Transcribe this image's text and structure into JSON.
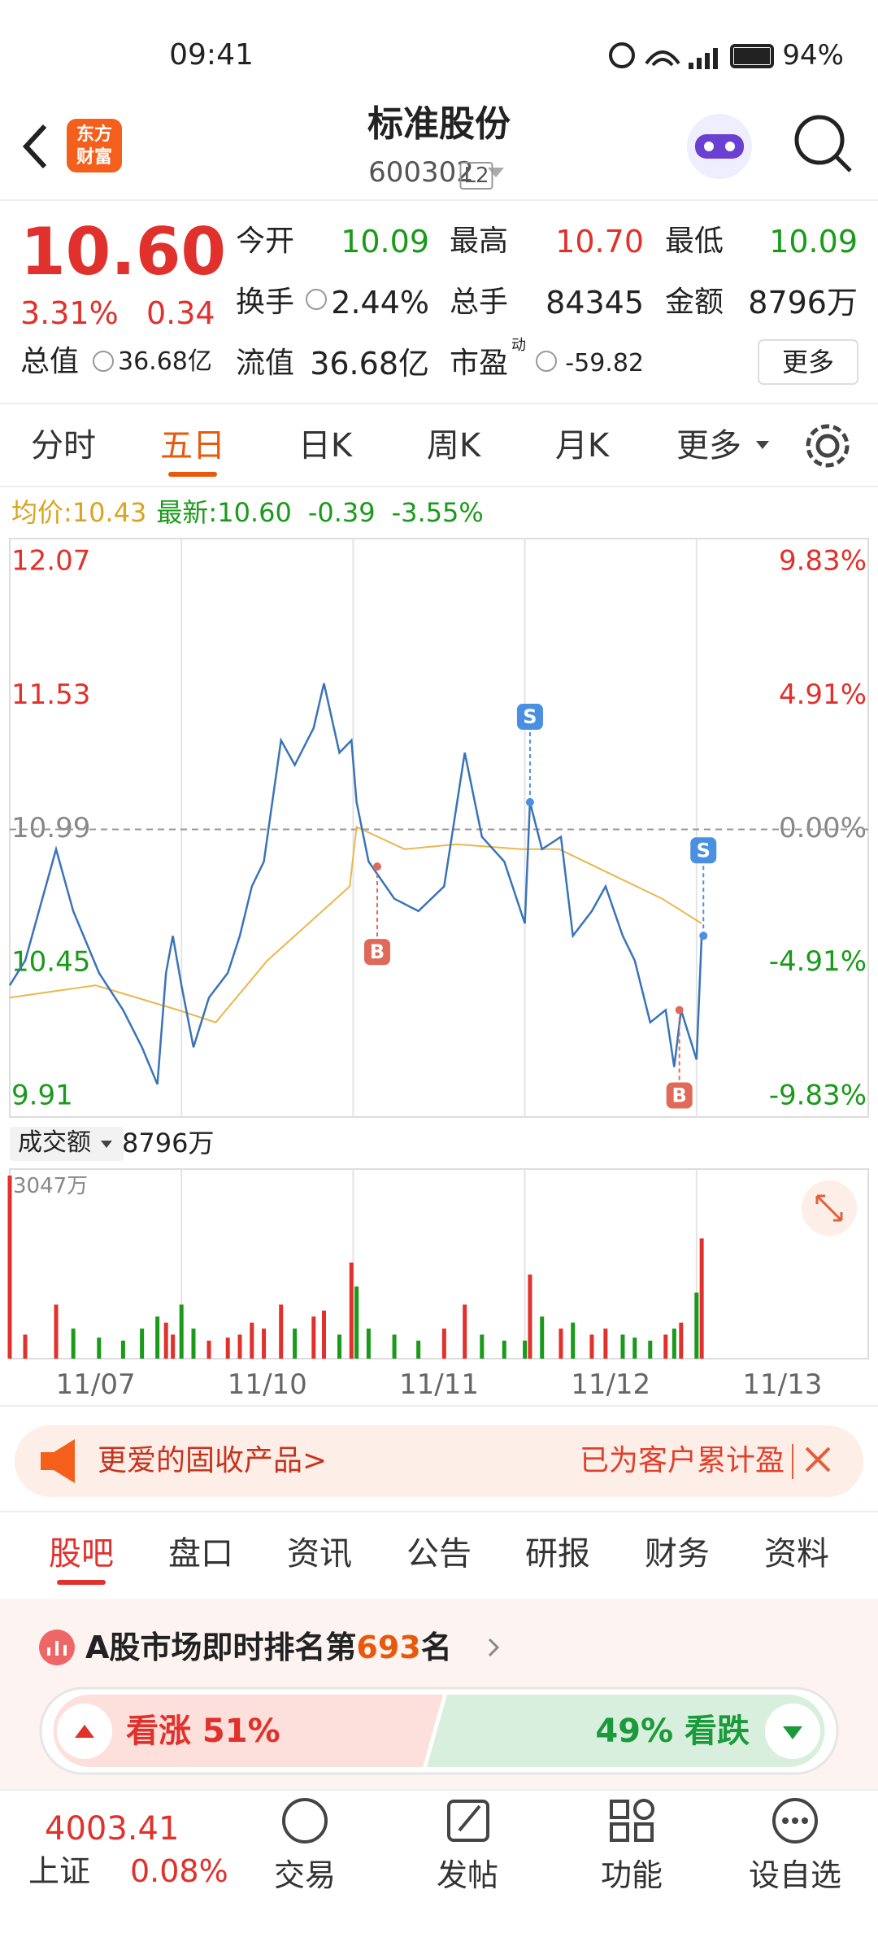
{
  "status_bar": {
    "time": "09:41",
    "battery": "94%"
  },
  "header": {
    "logo": [
      "东方",
      "财富"
    ],
    "title": "标准股份",
    "code": "600302",
    "badge": "L2"
  },
  "quote": {
    "price": "10.60",
    "change_pct": "3.31%",
    "change": "0.34",
    "total_value_label": "总值",
    "total_value": "36.68亿",
    "fields": [
      {
        "label": "今开",
        "value": "10.09"
      },
      {
        "label": "最高",
        "value": "10.70"
      },
      {
        "label": "最低",
        "value": "10.09"
      },
      {
        "label": "换手",
        "value": "2.44%"
      },
      {
        "label": "总手",
        "value": "84345"
      },
      {
        "label": "金额",
        "value": "8796万"
      },
      {
        "label": "流值",
        "value": "36.68亿"
      },
      {
        "label": "市盈",
        "sup": "动",
        "value": "-59.82"
      }
    ],
    "more": "更多"
  },
  "period_tabs": [
    "分时",
    "五日",
    "日K",
    "周K",
    "月K",
    "更多"
  ],
  "chart_data": {
    "type": "line",
    "legend": {
      "avg_label": "均价:",
      "avg": "10.43",
      "latest_label": "最新:",
      "latest": "10.60",
      "change": "-0.39",
      "change_pct": "-3.55%"
    },
    "x": [
      0,
      0.09,
      0.27,
      0.37,
      0.52,
      0.66,
      0.77,
      0.86,
      0.91,
      0.95,
      1.0,
      1.07,
      1.16,
      1.27,
      1.34,
      1.41,
      1.48,
      1.58,
      1.66,
      1.77,
      1.83,
      1.92,
      1.99,
      2.02,
      2.09,
      2.24,
      2.38,
      2.53,
      2.65,
      2.75,
      2.88,
      3.0,
      3.03,
      3.1,
      3.21,
      3.28,
      3.39,
      3.47,
      3.57,
      3.64,
      3.73,
      3.82,
      3.87,
      3.91,
      4.0,
      4.03
    ],
    "series": [
      {
        "color": "#3a73b8",
        "values": [
          10.36,
          10.46,
          10.91,
          10.66,
          10.41,
          10.26,
          10.11,
          9.96,
          10.41,
          10.56,
          10.36,
          10.11,
          10.31,
          10.41,
          10.56,
          10.76,
          10.86,
          11.35,
          11.25,
          11.4,
          11.58,
          11.3,
          11.35,
          11.1,
          10.86,
          10.71,
          10.66,
          10.76,
          11.3,
          10.96,
          10.86,
          10.61,
          11.1,
          10.91,
          10.96,
          10.56,
          10.66,
          10.76,
          10.56,
          10.46,
          10.21,
          10.26,
          10.03,
          10.26,
          10.06,
          10.56
        ]
      },
      {
        "color": "#e8b84d",
        "x": [
          0,
          0.5,
          0.98,
          1.2,
          1.5,
          1.98,
          2.02,
          2.3,
          2.6,
          2.98,
          3.2,
          3.5,
          3.8,
          4.03
        ],
        "values": [
          10.31,
          10.36,
          10.26,
          10.21,
          10.46,
          10.76,
          11.0,
          10.91,
          10.93,
          10.91,
          10.91,
          10.81,
          10.71,
          10.61
        ]
      }
    ],
    "xlim": [
      0,
      5
    ],
    "xticks": [
      {
        "value": 0.5,
        "label": "11/07"
      },
      {
        "value": 1.5,
        "label": "11/10"
      },
      {
        "value": 2.5,
        "label": "11/11"
      },
      {
        "value": 3.5,
        "label": "11/12"
      },
      {
        "value": 4.5,
        "label": "11/13"
      }
    ],
    "ylim": [
      9.91,
      12.07
    ],
    "yticks": [
      12.07,
      11.53,
      10.99,
      10.45,
      9.91
    ],
    "y2lim": [
      -9.83,
      9.83
    ],
    "y2ticks": [
      {
        "value": 9.83,
        "label": "9.83%"
      },
      {
        "value": 4.91,
        "label": "4.91%"
      },
      {
        "value": 0,
        "label": "0.00%"
      },
      {
        "value": -4.91,
        "label": "-4.91%"
      },
      {
        "value": -9.83,
        "label": "-9.83%"
      }
    ],
    "trades": [
      {
        "label": "B",
        "x": 2.14,
        "price": 10.84
      },
      {
        "label": "S",
        "x": 3.03,
        "price": 11.1
      },
      {
        "label": "B",
        "x": 3.9,
        "price": 10.26
      },
      {
        "label": "S",
        "x": 4.04,
        "price": 10.56
      }
    ],
    "volume": {
      "label": "成交额",
      "total": "8796万",
      "max_label": "3047万",
      "ylim": [
        0,
        3047
      ],
      "values": [
        3047,
        400,
        900,
        500,
        350,
        300,
        500,
        700,
        600,
        400,
        900,
        500,
        300,
        350,
        400,
        600,
        500,
        900,
        500,
        700,
        800,
        400,
        1600,
        1200,
        500,
        400,
        300,
        500,
        900,
        400,
        300,
        300,
        1400,
        700,
        500,
        600,
        400,
        500,
        400,
        350,
        300,
        400,
        500,
        600,
        1100,
        2000
      ]
    }
  },
  "banner": {
    "left": "更爱的固收产品>",
    "right": "已为客户累计盈"
  },
  "content_tabs": [
    "股吧",
    "盘口",
    "资讯",
    "公告",
    "研报",
    "财务",
    "资料"
  ],
  "rank": {
    "prefix": "A股市场即时排名第",
    "rank": "693",
    "suffix": "名"
  },
  "vote": {
    "up": "看涨 51%",
    "down": "49% 看跌"
  },
  "bottom_nav": {
    "index_value": "4003.41",
    "index_name": "上证",
    "index_change": "0.08%",
    "items": [
      "交易",
      "发帖",
      "功能",
      "设自选"
    ]
  }
}
